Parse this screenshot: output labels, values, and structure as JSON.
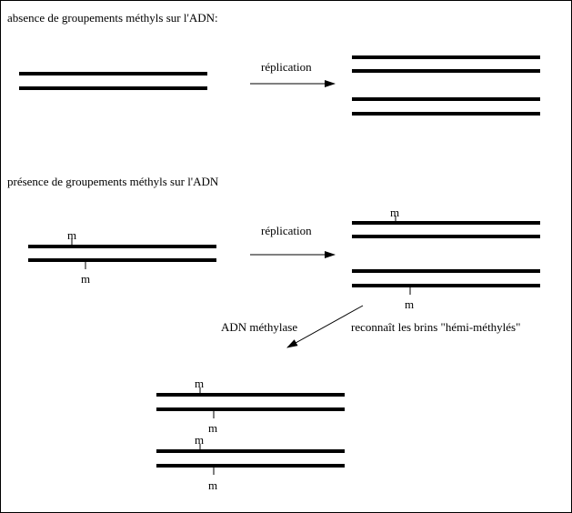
{
  "section_absence": {
    "title": "absence de groupements méthyls sur l'ADN:",
    "replication_label": "réplication"
  },
  "section_presence": {
    "title": "présence de groupements méthyls sur l'ADN",
    "replication_label": "réplication",
    "methyl_mark": "m",
    "enzyme_label": "ADN méthylase",
    "recognition_label": "reconnaît les brins \"hémi-méthylés\""
  }
}
